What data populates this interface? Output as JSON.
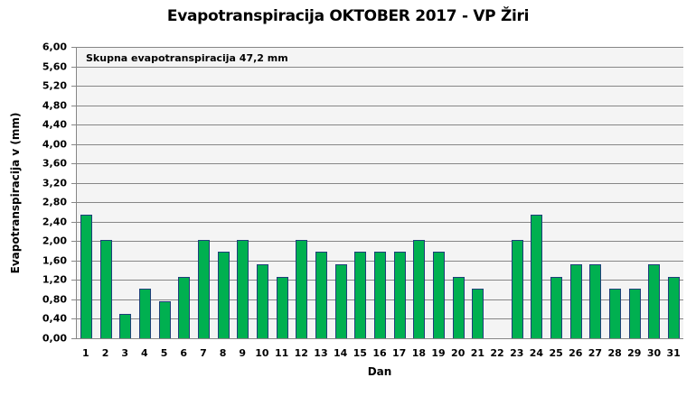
{
  "chart_data": {
    "type": "bar",
    "title": "Evapotranspiracija  OKTOBER  2017 - VP Žiri",
    "xlabel": "Dan",
    "ylabel": "Evapotranspiracija v  (mm)",
    "annotation": "Skupna evapotranspiracija  47,2 mm",
    "ylim": [
      0,
      6
    ],
    "y_ticks": [
      "0,00",
      "0,40",
      "0,80",
      "1,20",
      "1,60",
      "2,00",
      "2,40",
      "2,80",
      "3,20",
      "3,60",
      "4,00",
      "4,40",
      "4,80",
      "5,20",
      "5,60",
      "6,00"
    ],
    "grid": true,
    "legend": null,
    "categories": [
      "1",
      "2",
      "3",
      "4",
      "5",
      "6",
      "7",
      "8",
      "9",
      "10",
      "11",
      "12",
      "13",
      "14",
      "15",
      "16",
      "17",
      "18",
      "19",
      "20",
      "21",
      "22",
      "23",
      "24",
      "25",
      "26",
      "27",
      "28",
      "29",
      "30",
      "31"
    ],
    "values": [
      2.54,
      2.03,
      0.51,
      1.02,
      0.76,
      1.27,
      2.03,
      1.78,
      2.03,
      1.52,
      1.27,
      2.03,
      1.78,
      1.52,
      1.78,
      1.78,
      1.78,
      2.03,
      1.78,
      1.27,
      1.02,
      0,
      2.03,
      2.54,
      1.27,
      1.52,
      1.52,
      1.02,
      1.02,
      1.52,
      1.27
    ],
    "colors": {
      "bar_fill": "#00B050",
      "bar_border": "#1F3F7A",
      "plot_background": "#F4F4F4",
      "gridline": "#868686"
    }
  }
}
